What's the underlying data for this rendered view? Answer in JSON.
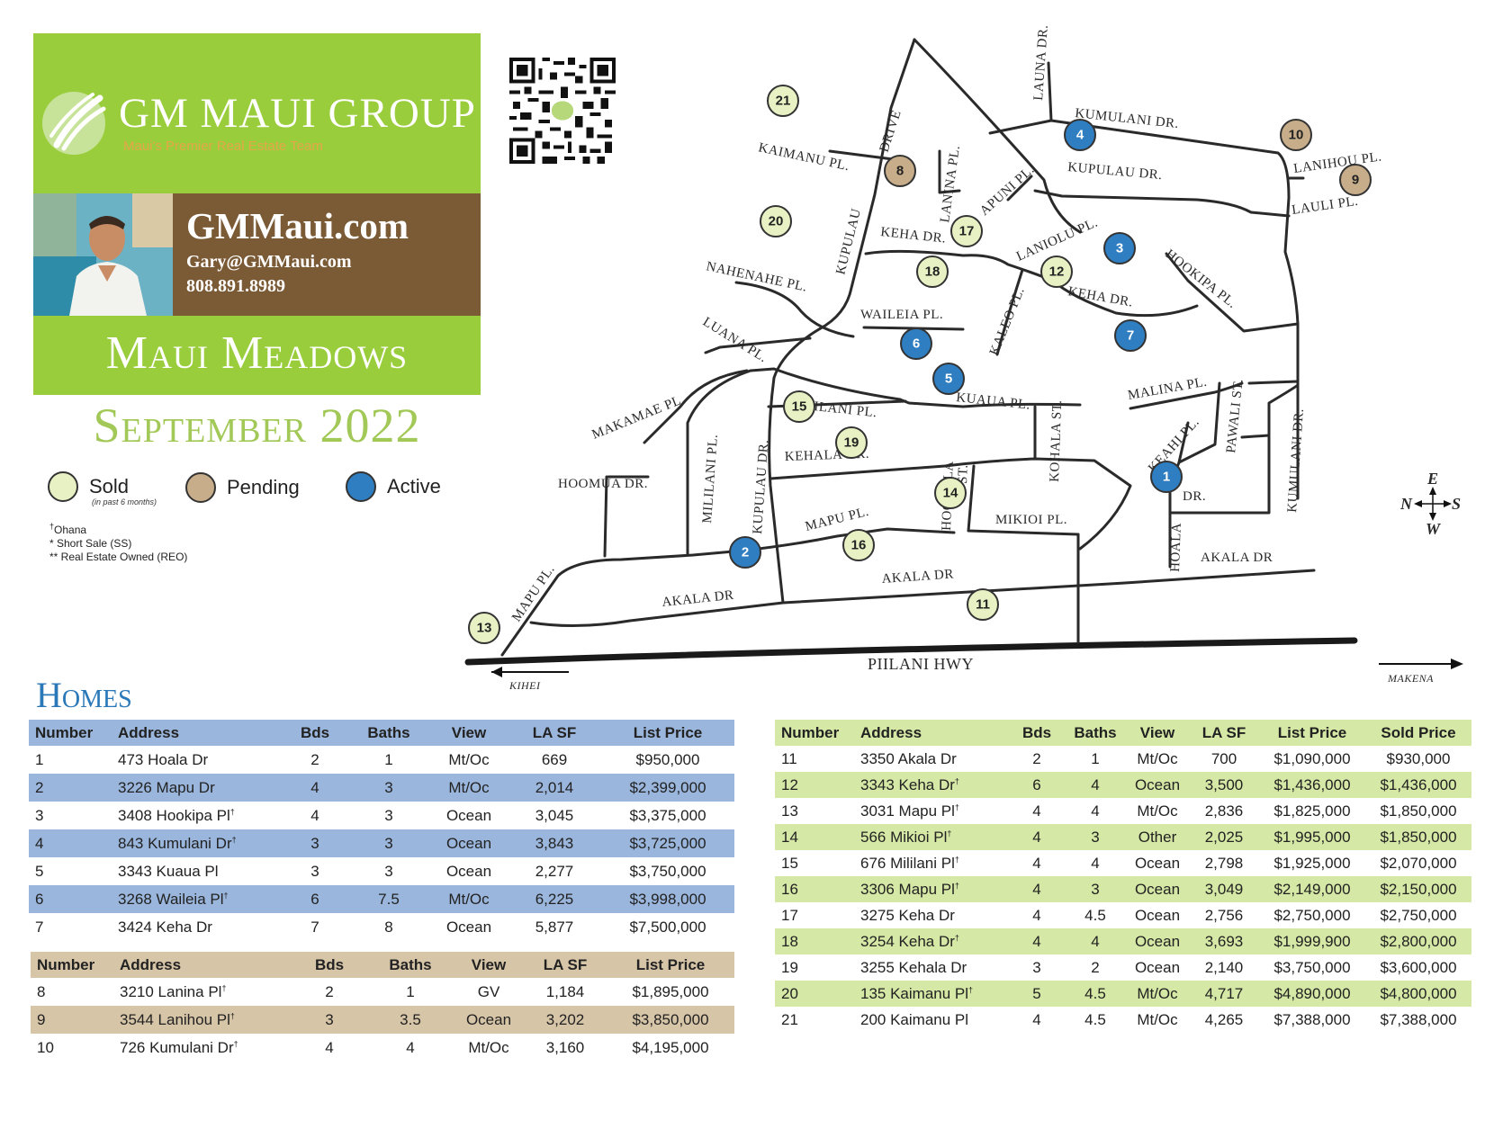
{
  "brand": {
    "name": "GM MAUI GROUP",
    "tagline": "Maui's Premier Real Estate Team",
    "website": "GMMaui.com",
    "email": "Gary@GMMaui.com",
    "phone": "808.891.8989"
  },
  "neighborhood": "Maui Meadows",
  "report_date": "September 2022",
  "legend": {
    "sold": "Sold",
    "sold_note": "(in past 6 months)",
    "pending": "Pending",
    "active": "Active"
  },
  "notes": {
    "ohana_mark": "†",
    "ohana": "Ohana",
    "short_sale": "* Short Sale (SS)",
    "reo": "** Real Estate Owned (REO)"
  },
  "colors": {
    "sold": "#e8f1c4",
    "pending": "#c7ad8a",
    "active": "#2f7ec1",
    "brand_green": "#9acd3c",
    "brand_brown": "#7b5a36",
    "homes_title": "#2a78b8"
  },
  "map": {
    "streets": {
      "launa_dr": "LAUNA DR.",
      "kumulani_dr_top": "KUMULANI DR.",
      "kaimanu_pl": "KAIMANU PL.",
      "drive": "DRIVE",
      "lanina_pl": "LANINA PL.",
      "apuni_pl": "APUNI PL.",
      "kupulau_dr_top": "KUPULAU DR.",
      "lanihou_pl": "LANIHOU PL.",
      "lauli_pl": "LAULI PL.",
      "kupulau": "KUPULAU",
      "keha_dr_1": "KEHA DR.",
      "laniolu_pl": "LANIOLU PL.",
      "hookipa_pl": "HOOKIPA PL.",
      "nahenahe_pl": "NAHENAHE PL.",
      "keha_dr_2": "KEHA DR.",
      "waileia_pl": "WAILEIA PL.",
      "kaleo_pl": "KALEO PL.",
      "luana_pl": "LUANA PL.",
      "kuaua_pl": "KUAUA PL.",
      "malina_pl": "MALINA PL.",
      "makamae_pl": "MAKAMAE PL.",
      "ilani_pl": "ILANI PL.",
      "pawali_st": "PAWALI ST.",
      "kohala_st": "KOHALA ST.",
      "keahi_pl": "KEAHI PL.",
      "kumulani_dr_right": "KUMULANI DR.",
      "kehala_dr": "KEHALA DR.",
      "hoomua_dr": "HOOMUA DR.",
      "mililani_pl": "MILILANI PL.",
      "kupulau_dr": "KUPULAU DR.",
      "hoohala_st_1": "HOOHALA",
      "hoohala_st_2": "ST.",
      "dr": "DR.",
      "mapu_pl_1": "MAPU PL.",
      "mikioi_pl": "MIKIOI PL.",
      "hoala": "HOALA",
      "akala_dr_right": "AKALA DR",
      "mapu_pl_2": "MAPU PL.",
      "akala_dr_mid": "AKALA DR",
      "akala_dr_left": "AKALA DR",
      "piilani_hwy": "PIILANI HWY",
      "kihei": "KIHEI",
      "makena": "MAKENA"
    },
    "compass": {
      "n": "N",
      "s": "S",
      "e": "E",
      "w": "W"
    },
    "markers": [
      {
        "num": "1",
        "status": "active"
      },
      {
        "num": "2",
        "status": "active"
      },
      {
        "num": "3",
        "status": "active"
      },
      {
        "num": "4",
        "status": "active"
      },
      {
        "num": "5",
        "status": "active"
      },
      {
        "num": "6",
        "status": "active"
      },
      {
        "num": "7",
        "status": "active"
      },
      {
        "num": "8",
        "status": "pending"
      },
      {
        "num": "9",
        "status": "pending"
      },
      {
        "num": "10",
        "status": "pending"
      },
      {
        "num": "11",
        "status": "sold"
      },
      {
        "num": "12",
        "status": "sold"
      },
      {
        "num": "13",
        "status": "sold"
      },
      {
        "num": "14",
        "status": "sold"
      },
      {
        "num": "15",
        "status": "sold"
      },
      {
        "num": "16",
        "status": "sold"
      },
      {
        "num": "17",
        "status": "sold"
      },
      {
        "num": "18",
        "status": "sold"
      },
      {
        "num": "19",
        "status": "sold"
      },
      {
        "num": "20",
        "status": "sold"
      },
      {
        "num": "21",
        "status": "sold"
      }
    ]
  },
  "homes_title": "Homes",
  "active_table": {
    "headers": [
      "Number",
      "Address",
      "Bds",
      "Baths",
      "View",
      "LA SF",
      "List Price"
    ],
    "rows": [
      {
        "number": "1",
        "address": "473 Hoala Dr",
        "ohana": "",
        "bds": "2",
        "baths": "1",
        "view": "Mt/Oc",
        "la_sf": "669",
        "list_price": "$950,000"
      },
      {
        "number": "2",
        "address": "3226 Mapu Dr",
        "ohana": "",
        "bds": "4",
        "baths": "3",
        "view": "Mt/Oc",
        "la_sf": "2,014",
        "list_price": "$2,399,000"
      },
      {
        "number": "3",
        "address": "3408 Hookipa Pl",
        "ohana": "†",
        "bds": "4",
        "baths": "3",
        "view": "Ocean",
        "la_sf": "3,045",
        "list_price": "$3,375,000"
      },
      {
        "number": "4",
        "address": "843 Kumulani Dr",
        "ohana": "†",
        "bds": "3",
        "baths": "3",
        "view": "Ocean",
        "la_sf": "3,843",
        "list_price": "$3,725,000"
      },
      {
        "number": "5",
        "address": "3343 Kuaua Pl",
        "ohana": "",
        "bds": "3",
        "baths": "3",
        "view": "Ocean",
        "la_sf": "2,277",
        "list_price": "$3,750,000"
      },
      {
        "number": "6",
        "address": "3268 Waileia Pl",
        "ohana": "†",
        "bds": "6",
        "baths": "7.5",
        "view": "Mt/Oc",
        "la_sf": "6,225",
        "list_price": "$3,998,000"
      },
      {
        "number": "7",
        "address": "3424 Keha Dr",
        "ohana": "",
        "bds": "7",
        "baths": "8",
        "view": "Ocean",
        "la_sf": "5,877",
        "list_price": "$7,500,000"
      }
    ]
  },
  "pending_table": {
    "headers": [
      "Number",
      "Address",
      "Bds",
      "Baths",
      "View",
      "LA SF",
      "List Price"
    ],
    "rows": [
      {
        "number": "8",
        "address": "3210 Lanina Pl",
        "ohana": "†",
        "bds": "2",
        "baths": "1",
        "view": "GV",
        "la_sf": "1,184",
        "list_price": "$1,895,000"
      },
      {
        "number": "9",
        "address": "3544 Lanihou Pl",
        "ohana": "†",
        "bds": "3",
        "baths": "3.5",
        "view": "Ocean",
        "la_sf": "3,202",
        "list_price": "$3,850,000"
      },
      {
        "number": "10",
        "address": "726 Kumulani Dr",
        "ohana": "†",
        "bds": "4",
        "baths": "4",
        "view": "Mt/Oc",
        "la_sf": "3,160",
        "list_price": "$4,195,000"
      }
    ]
  },
  "sold_table": {
    "headers": [
      "Number",
      "Address",
      "Bds",
      "Baths",
      "View",
      "LA SF",
      "List Price",
      "Sold Price"
    ],
    "rows": [
      {
        "number": "11",
        "address": "3350 Akala Dr",
        "ohana": "",
        "bds": "2",
        "baths": "1",
        "view": "Mt/Oc",
        "la_sf": "700",
        "list_price": "$1,090,000",
        "sold_price": "$930,000"
      },
      {
        "number": "12",
        "address": "3343 Keha Dr",
        "ohana": "†",
        "bds": "6",
        "baths": "4",
        "view": "Ocean",
        "la_sf": "3,500",
        "list_price": "$1,436,000",
        "sold_price": "$1,436,000"
      },
      {
        "number": "13",
        "address": "3031 Mapu Pl",
        "ohana": "†",
        "bds": "4",
        "baths": "4",
        "view": "Mt/Oc",
        "la_sf": "2,836",
        "list_price": "$1,825,000",
        "sold_price": "$1,850,000"
      },
      {
        "number": "14",
        "address": "566 Mikioi Pl",
        "ohana": "†",
        "bds": "4",
        "baths": "3",
        "view": "Other",
        "la_sf": "2,025",
        "list_price": "$1,995,000",
        "sold_price": "$1,850,000"
      },
      {
        "number": "15",
        "address": "676 Mililani Pl",
        "ohana": "†",
        "bds": "4",
        "baths": "4",
        "view": "Ocean",
        "la_sf": "2,798",
        "list_price": "$1,925,000",
        "sold_price": "$2,070,000"
      },
      {
        "number": "16",
        "address": "3306 Mapu Pl",
        "ohana": "†",
        "bds": "4",
        "baths": "3",
        "view": "Ocean",
        "la_sf": "3,049",
        "list_price": "$2,149,000",
        "sold_price": "$2,150,000"
      },
      {
        "number": "17",
        "address": "3275 Keha Dr",
        "ohana": "",
        "bds": "4",
        "baths": "4.5",
        "view": "Ocean",
        "la_sf": "2,756",
        "list_price": "$2,750,000",
        "sold_price": "$2,750,000"
      },
      {
        "number": "18",
        "address": "3254 Keha Dr",
        "ohana": "†",
        "bds": "4",
        "baths": "4",
        "view": "Ocean",
        "la_sf": "3,693",
        "list_price": "$1,999,900",
        "sold_price": "$2,800,000"
      },
      {
        "number": "19",
        "address": "3255 Kehala Dr",
        "ohana": "",
        "bds": "3",
        "baths": "2",
        "view": "Ocean",
        "la_sf": "2,140",
        "list_price": "$3,750,000",
        "sold_price": "$3,600,000"
      },
      {
        "number": "20",
        "address": "135 Kaimanu Pl",
        "ohana": "†",
        "bds": "5",
        "baths": "4.5",
        "view": "Mt/Oc",
        "la_sf": "4,717",
        "list_price": "$4,890,000",
        "sold_price": "$4,800,000"
      },
      {
        "number": "21",
        "address": "200 Kaimanu Pl",
        "ohana": "",
        "bds": "4",
        "baths": "4.5",
        "view": "Mt/Oc",
        "la_sf": "4,265",
        "list_price": "$7,388,000",
        "sold_price": "$7,388,000"
      }
    ]
  }
}
